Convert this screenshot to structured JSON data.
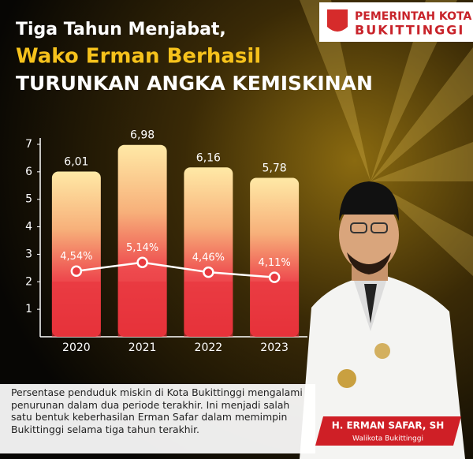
{
  "header": {
    "line1": "Tiga Tahun Menjabat,",
    "line2": "Wako Erman Berhasil",
    "line3": "TURUNKAN ANGKA KEMISKINAN",
    "logo_top": "PEMERINTAH KOTA",
    "logo_bottom": "BUKITTINGGI"
  },
  "chart_data": {
    "type": "bar",
    "categories": [
      "2020",
      "2021",
      "2022",
      "2023"
    ],
    "series": [
      {
        "type": "bar",
        "values": [
          6.01,
          6.98,
          6.16,
          5.78
        ],
        "value_labels": [
          "6,01",
          "6,98",
          "6,16",
          "5,78"
        ],
        "color": "#e8343c"
      },
      {
        "type": "line",
        "axis": "y2",
        "values": [
          4.54,
          5.14,
          4.46,
          4.11
        ],
        "value_labels": [
          "4,54%",
          "5,14%",
          "4,46%",
          "4,11%"
        ],
        "color": "#ffffff"
      }
    ],
    "ylim": [
      0,
      7
    ],
    "yticks": [
      1,
      2,
      3,
      4,
      5,
      6,
      7
    ],
    "y2lim": [
      0,
      13.3
    ]
  },
  "caption": "Persentase penduduk miskin di Kota Bukittinggi mengalami penurunan dalam dua periode terakhir. Ini menjadi salah satu bentuk keberhasilan Erman Safar dalam memimpin Bukittinggi selama tiga tahun terakhir.",
  "person": {
    "name": "H. ERMAN SAFAR, SH",
    "role": "Walikota Bukittinggi"
  }
}
